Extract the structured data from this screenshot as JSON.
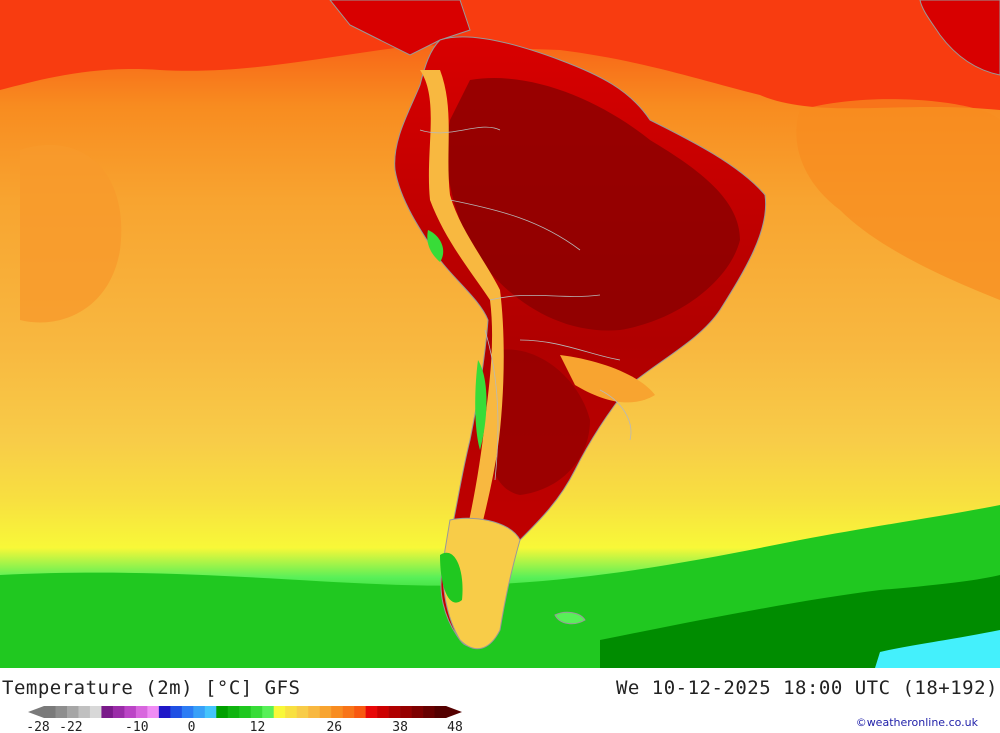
{
  "map": {
    "title": "Temperature (2m) [°C] GFS",
    "valid_time": "We 10-12-2025 18:00 UTC (18+192)",
    "credit": "©weatheronline.co.uk",
    "colorbar": {
      "colors": [
        "#7a7a7a",
        "#8e8e8e",
        "#a6a6a6",
        "#c0c0c0",
        "#d8d8d8",
        "#7a1a8a",
        "#9a2ca8",
        "#bb44c6",
        "#d866de",
        "#f08cf4",
        "#2018c8",
        "#2050e4",
        "#2c7cf4",
        "#38a0f8",
        "#44c4fc",
        "#00a000",
        "#10b410",
        "#20c820",
        "#38dc38",
        "#58f058",
        "#f8f838",
        "#f8e040",
        "#f8cc48",
        "#f8b840",
        "#f8a430",
        "#f88c20",
        "#f87418",
        "#f85810",
        "#e80808",
        "#cc0000",
        "#b00000",
        "#960000",
        "#7e0000",
        "#680000",
        "#540000"
      ],
      "ticks": [
        {
          "label": "-28",
          "value": -28
        },
        {
          "label": "-22",
          "value": -22
        },
        {
          "label": "-10",
          "value": -10
        },
        {
          "label": "0",
          "value": 0
        },
        {
          "label": "12",
          "value": 12
        },
        {
          "label": "26",
          "value": 26
        },
        {
          "label": "38",
          "value": 38
        },
        {
          "label": "48",
          "value": 48
        }
      ]
    }
  }
}
